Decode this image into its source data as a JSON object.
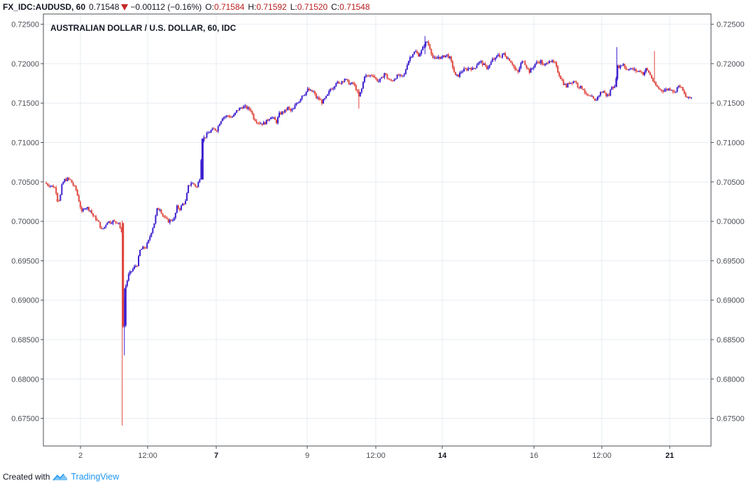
{
  "header": {
    "symbol": "FX_IDC:AUDUSD, 60",
    "last": "0.71548",
    "change": "−0.00112 (−0.16%)",
    "open_label": "O:",
    "open": "0.71584",
    "high_label": "H:",
    "high": "0.71592",
    "low_label": "L:",
    "low": "0.71520",
    "close_label": "C:",
    "close": "0.71548"
  },
  "footer": {
    "created_with": "Created with",
    "brand": "TradingView",
    "logo_icon": "tradingview-logo-icon"
  },
  "colors": {
    "up": "#3d1fd0",
    "down": "#e0453d",
    "grid": "#e6ecf2",
    "axis": "#4b4f56",
    "header_value": "#b71c1c",
    "brand": "#2196f3"
  },
  "chart_data": {
    "type": "candlestick",
    "title": "AUSTRALIAN DOLLAR / U.S. DOLLAR, 60, IDC",
    "ylim": [
      0.6715,
      0.7263
    ],
    "yticks": [
      "0.67500",
      "0.68000",
      "0.68500",
      "0.69000",
      "0.69500",
      "0.70000",
      "0.70500",
      "0.71000",
      "0.71500",
      "0.72000",
      "0.72500"
    ],
    "xticks": [
      {
        "label": "2",
        "bold": false
      },
      {
        "label": "12:00",
        "bold": false
      },
      {
        "label": "7",
        "bold": true
      },
      {
        "label": "9",
        "bold": false
      },
      {
        "label": "12:00",
        "bold": false
      },
      {
        "label": "14",
        "bold": true
      },
      {
        "label": "16",
        "bold": false
      },
      {
        "label": "12:00",
        "bold": false
      },
      {
        "label": "21",
        "bold": true
      }
    ],
    "grid": true,
    "price_path": [
      [
        0,
        0.7049
      ],
      [
        3,
        0.7047
      ],
      [
        6,
        0.7046
      ],
      [
        9,
        0.7045
      ],
      [
        12,
        0.7044
      ],
      [
        15,
        0.7042
      ],
      [
        18,
        0.7028
      ],
      [
        21,
        0.7027
      ],
      [
        24,
        0.7045
      ],
      [
        27,
        0.7052
      ],
      [
        30,
        0.7053
      ],
      [
        33,
        0.7054
      ],
      [
        36,
        0.7052
      ],
      [
        40,
        0.7046
      ],
      [
        44,
        0.704
      ],
      [
        48,
        0.7026
      ],
      [
        52,
        0.7011
      ],
      [
        56,
        0.7018
      ],
      [
        60,
        0.7017
      ],
      [
        64,
        0.7014
      ],
      [
        68,
        0.7007
      ],
      [
        72,
        0.7003
      ],
      [
        76,
        0.6998
      ],
      [
        80,
        0.6989
      ],
      [
        84,
        0.6993
      ],
      [
        88,
        0.7
      ],
      [
        92,
        0.6999
      ],
      [
        96,
        0.7
      ],
      [
        100,
        0.6999
      ],
      [
        104,
        0.6999
      ],
      [
        108,
        0.6985
      ],
      [
        110,
        0.6868
      ],
      [
        112,
        0.6868
      ],
      [
        114,
        0.6918
      ],
      [
        118,
        0.6932
      ],
      [
        122,
        0.6937
      ],
      [
        126,
        0.6942
      ],
      [
        130,
        0.6945
      ],
      [
        134,
        0.6963
      ],
      [
        138,
        0.6966
      ],
      [
        142,
        0.6967
      ],
      [
        146,
        0.6975
      ],
      [
        150,
        0.6987
      ],
      [
        154,
        0.6998
      ],
      [
        158,
        0.7015
      ],
      [
        162,
        0.7016
      ],
      [
        166,
        0.7008
      ],
      [
        170,
        0.7003
      ],
      [
        174,
        0.7
      ],
      [
        178,
        0.7002
      ],
      [
        182,
        0.7003
      ],
      [
        186,
        0.7018
      ],
      [
        190,
        0.7016
      ],
      [
        194,
        0.7022
      ],
      [
        198,
        0.7025
      ],
      [
        202,
        0.7044
      ],
      [
        206,
        0.7049
      ],
      [
        210,
        0.7047
      ],
      [
        214,
        0.7043
      ],
      [
        218,
        0.7055
      ],
      [
        222,
        0.7104
      ],
      [
        226,
        0.7108
      ],
      [
        230,
        0.7112
      ],
      [
        234,
        0.7115
      ],
      [
        238,
        0.7117
      ],
      [
        242,
        0.7116
      ],
      [
        246,
        0.7125
      ],
      [
        250,
        0.7132
      ],
      [
        254,
        0.7133
      ],
      [
        258,
        0.7134
      ],
      [
        262,
        0.7132
      ],
      [
        266,
        0.7134
      ],
      [
        270,
        0.714
      ],
      [
        274,
        0.7143
      ],
      [
        278,
        0.7145
      ],
      [
        282,
        0.7145
      ],
      [
        286,
        0.7143
      ],
      [
        290,
        0.7141
      ],
      [
        294,
        0.7131
      ],
      [
        298,
        0.7127
      ],
      [
        302,
        0.7125
      ],
      [
        306,
        0.7124
      ],
      [
        310,
        0.7125
      ],
      [
        314,
        0.7129
      ],
      [
        318,
        0.7133
      ],
      [
        322,
        0.713
      ],
      [
        326,
        0.7126
      ],
      [
        330,
        0.7136
      ],
      [
        334,
        0.7138
      ],
      [
        338,
        0.714
      ],
      [
        342,
        0.7144
      ],
      [
        346,
        0.714
      ],
      [
        350,
        0.7142
      ],
      [
        354,
        0.715
      ],
      [
        358,
        0.7153
      ],
      [
        362,
        0.716
      ],
      [
        366,
        0.7162
      ],
      [
        370,
        0.7167
      ],
      [
        374,
        0.7165
      ],
      [
        378,
        0.7164
      ],
      [
        382,
        0.7157
      ],
      [
        386,
        0.7155
      ],
      [
        390,
        0.7151
      ],
      [
        394,
        0.7155
      ],
      [
        398,
        0.716
      ],
      [
        402,
        0.7168
      ],
      [
        406,
        0.717
      ],
      [
        410,
        0.7177
      ],
      [
        414,
        0.7174
      ],
      [
        418,
        0.7178
      ],
      [
        422,
        0.7181
      ],
      [
        426,
        0.7177
      ],
      [
        430,
        0.7174
      ],
      [
        434,
        0.7175
      ],
      [
        438,
        0.7168
      ],
      [
        442,
        0.7158
      ],
      [
        446,
        0.7168
      ],
      [
        450,
        0.7185
      ],
      [
        454,
        0.7184
      ],
      [
        458,
        0.7185
      ],
      [
        462,
        0.7186
      ],
      [
        466,
        0.718
      ],
      [
        470,
        0.7178
      ],
      [
        474,
        0.7181
      ],
      [
        478,
        0.7188
      ],
      [
        482,
        0.7182
      ],
      [
        486,
        0.7178
      ],
      [
        490,
        0.7179
      ],
      [
        494,
        0.7183
      ],
      [
        498,
        0.7185
      ],
      [
        502,
        0.7183
      ],
      [
        506,
        0.7186
      ],
      [
        510,
        0.72
      ],
      [
        514,
        0.7208
      ],
      [
        518,
        0.7213
      ],
      [
        522,
        0.7215
      ],
      [
        526,
        0.7211
      ],
      [
        530,
        0.7216
      ],
      [
        534,
        0.7224
      ],
      [
        538,
        0.7228
      ],
      [
        542,
        0.722
      ],
      [
        546,
        0.7208
      ],
      [
        550,
        0.7205
      ],
      [
        554,
        0.7209
      ],
      [
        558,
        0.7207
      ],
      [
        562,
        0.721
      ],
      [
        566,
        0.7211
      ],
      [
        570,
        0.7207
      ],
      [
        574,
        0.7196
      ],
      [
        578,
        0.7184
      ],
      [
        582,
        0.7185
      ],
      [
        586,
        0.719
      ],
      [
        590,
        0.7192
      ],
      [
        594,
        0.7193
      ],
      [
        598,
        0.7195
      ],
      [
        602,
        0.7193
      ],
      [
        606,
        0.7196
      ],
      [
        610,
        0.7202
      ],
      [
        614,
        0.7202
      ],
      [
        618,
        0.7198
      ],
      [
        622,
        0.7195
      ],
      [
        626,
        0.7198
      ],
      [
        630,
        0.7205
      ],
      [
        634,
        0.7206
      ],
      [
        638,
        0.7212
      ],
      [
        642,
        0.7208
      ],
      [
        646,
        0.7213
      ],
      [
        650,
        0.7208
      ],
      [
        654,
        0.7205
      ],
      [
        658,
        0.72
      ],
      [
        662,
        0.7192
      ],
      [
        666,
        0.7189
      ],
      [
        670,
        0.72
      ],
      [
        674,
        0.7204
      ],
      [
        678,
        0.7196
      ],
      [
        682,
        0.719
      ],
      [
        686,
        0.7194
      ],
      [
        690,
        0.72
      ],
      [
        694,
        0.7202
      ],
      [
        698,
        0.7203
      ],
      [
        702,
        0.7197
      ],
      [
        706,
        0.72
      ],
      [
        710,
        0.7205
      ],
      [
        714,
        0.7202
      ],
      [
        718,
        0.72
      ],
      [
        722,
        0.719
      ],
      [
        726,
        0.7182
      ],
      [
        730,
        0.7175
      ],
      [
        734,
        0.7171
      ],
      [
        738,
        0.7176
      ],
      [
        742,
        0.7177
      ],
      [
        746,
        0.7178
      ],
      [
        750,
        0.7172
      ],
      [
        754,
        0.717
      ],
      [
        758,
        0.7168
      ],
      [
        762,
        0.716
      ],
      [
        766,
        0.7158
      ],
      [
        770,
        0.7157
      ],
      [
        774,
        0.7152
      ],
      [
        778,
        0.7158
      ],
      [
        782,
        0.7163
      ],
      [
        786,
        0.7165
      ],
      [
        790,
        0.716
      ],
      [
        794,
        0.716
      ],
      [
        798,
        0.7172
      ],
      [
        802,
        0.717
      ],
      [
        806,
        0.7196
      ],
      [
        810,
        0.7197
      ],
      [
        814,
        0.72
      ],
      [
        818,
        0.7193
      ],
      [
        822,
        0.7194
      ],
      [
        826,
        0.7193
      ],
      [
        830,
        0.7192
      ],
      [
        834,
        0.719
      ],
      [
        838,
        0.7191
      ],
      [
        842,
        0.7187
      ],
      [
        846,
        0.7193
      ],
      [
        850,
        0.7189
      ],
      [
        854,
        0.7182
      ],
      [
        858,
        0.7174
      ],
      [
        862,
        0.717
      ],
      [
        866,
        0.7167
      ],
      [
        870,
        0.7166
      ],
      [
        874,
        0.7167
      ],
      [
        878,
        0.7168
      ],
      [
        882,
        0.7168
      ],
      [
        886,
        0.7163
      ],
      [
        890,
        0.717
      ],
      [
        894,
        0.7172
      ],
      [
        898,
        0.7165
      ],
      [
        902,
        0.7158
      ],
      [
        906,
        0.7156
      ],
      [
        910,
        0.7157
      ]
    ],
    "spikes": [
      {
        "i": 109,
        "hi": 0.7001,
        "lo": 0.6741,
        "color": "down"
      },
      {
        "i": 112,
        "hi": 0.6902,
        "lo": 0.683,
        "color": "up"
      },
      {
        "i": 805,
        "hi": 0.7221,
        "lo": 0.717,
        "color": "up"
      },
      {
        "i": 858,
        "hi": 0.7216,
        "lo": 0.718,
        "color": "down"
      },
      {
        "i": 535,
        "hi": 0.7235,
        "lo": 0.7212,
        "color": "up"
      },
      {
        "i": 442,
        "hi": 0.7168,
        "lo": 0.7143,
        "color": "down"
      },
      {
        "i": 17,
        "hi": 0.7028,
        "lo": 0.7025,
        "color": "down"
      }
    ]
  }
}
